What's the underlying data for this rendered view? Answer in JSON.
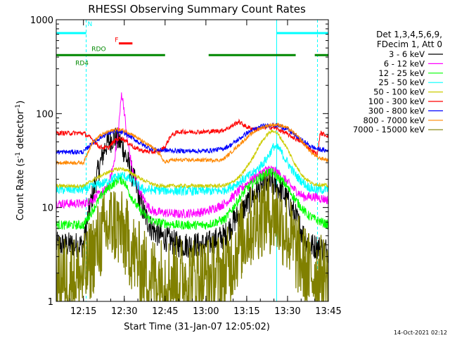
{
  "chart_data": {
    "type": "line",
    "title": "RHESSI Observing Summary Count Rates",
    "xlabel": "Start Time (31-Jan-07 12:05:02)",
    "ylabel_parts": [
      "Count Rate (s",
      "-1",
      " detector",
      "-1",
      ")"
    ],
    "x_axis": {
      "unit": "minutes after 12:05:02",
      "range": [
        0,
        100
      ],
      "tick_labels": [
        "12:15",
        "12:30",
        "12:45",
        "13:00",
        "13:15",
        "13:30",
        "13:45"
      ],
      "tick_values": [
        10,
        25,
        40,
        55,
        70,
        85,
        100
      ]
    },
    "y_axis": {
      "scale": "log",
      "range": [
        1,
        1000
      ],
      "tick_labels": [
        "1",
        "10",
        "100",
        "1000"
      ],
      "tick_values": [
        1,
        10,
        100,
        1000
      ]
    },
    "legend": {
      "placement": "right",
      "header": [
        "Det 1,3,4,5,6,9,",
        "FDecim 1, Att 0"
      ]
    },
    "series": [
      {
        "name": "3 - 6 keV",
        "color": "#000000",
        "noise": 0.14,
        "points": [
          [
            0,
            4.0
          ],
          [
            10,
            4.0
          ],
          [
            12,
            9
          ],
          [
            15,
            22
          ],
          [
            18,
            45
          ],
          [
            21,
            56
          ],
          [
            24,
            48
          ],
          [
            26,
            32
          ],
          [
            29,
            18
          ],
          [
            32,
            9
          ],
          [
            35,
            6
          ],
          [
            38,
            5
          ],
          [
            45,
            4.0
          ],
          [
            55,
            4.0
          ],
          [
            62,
            5
          ],
          [
            65,
            7
          ],
          [
            68,
            9
          ],
          [
            72,
            13
          ],
          [
            75,
            16
          ],
          [
            79,
            18
          ],
          [
            82,
            16
          ],
          [
            85,
            12
          ],
          [
            88,
            8
          ],
          [
            91,
            5
          ],
          [
            93,
            4.0
          ],
          [
            100,
            3.5
          ]
        ]
      },
      {
        "name": "6 - 12 keV",
        "color": "#ff00ff",
        "noise": 0.05,
        "points": [
          [
            0,
            11
          ],
          [
            10,
            11
          ],
          [
            13,
            12
          ],
          [
            16,
            14
          ],
          [
            19,
            16
          ],
          [
            21,
            28
          ],
          [
            22.5,
            55
          ],
          [
            23.5,
            110
          ],
          [
            24,
            165
          ],
          [
            24.8,
            120
          ],
          [
            26,
            55
          ],
          [
            28,
            25
          ],
          [
            31,
            14
          ],
          [
            34,
            10
          ],
          [
            36,
            9
          ],
          [
            45,
            8.5
          ],
          [
            55,
            9
          ],
          [
            62,
            11
          ],
          [
            66,
            14
          ],
          [
            70,
            18
          ],
          [
            74,
            22
          ],
          [
            78,
            26
          ],
          [
            81,
            24
          ],
          [
            84,
            20
          ],
          [
            87,
            16
          ],
          [
            91,
            13
          ],
          [
            95,
            13
          ],
          [
            100,
            12
          ]
        ]
      },
      {
        "name": "12 - 25 keV",
        "color": "#00ff00",
        "noise": 0.05,
        "points": [
          [
            0,
            6.5
          ],
          [
            10,
            6.5
          ],
          [
            14,
            10
          ],
          [
            17,
            14
          ],
          [
            20,
            17
          ],
          [
            23,
            20
          ],
          [
            25,
            19
          ],
          [
            27,
            14
          ],
          [
            30,
            10
          ],
          [
            33,
            8
          ],
          [
            36,
            7
          ],
          [
            45,
            6.5
          ],
          [
            55,
            6.5
          ],
          [
            62,
            7.5
          ],
          [
            66,
            11
          ],
          [
            70,
            16
          ],
          [
            74,
            20
          ],
          [
            78,
            24
          ],
          [
            80,
            23
          ],
          [
            84,
            18
          ],
          [
            88,
            12
          ],
          [
            92,
            8.5
          ],
          [
            95,
            7.5
          ],
          [
            100,
            6.5
          ]
        ]
      },
      {
        "name": "25 - 50 keV",
        "color": "#00ffff",
        "noise": 0.05,
        "points": [
          [
            0,
            15.5
          ],
          [
            10,
            15.5
          ],
          [
            14,
            17
          ],
          [
            18,
            18.5
          ],
          [
            21,
            20.5
          ],
          [
            24,
            22
          ],
          [
            26,
            21
          ],
          [
            29,
            18
          ],
          [
            32,
            15.5
          ],
          [
            45,
            15
          ],
          [
            55,
            15
          ],
          [
            61,
            15
          ],
          [
            65,
            17
          ],
          [
            69,
            20
          ],
          [
            73,
            24
          ],
          [
            77,
            32
          ],
          [
            80,
            45
          ],
          [
            82,
            42
          ],
          [
            85,
            30
          ],
          [
            88,
            22
          ],
          [
            92,
            17
          ],
          [
            95,
            15.5
          ],
          [
            100,
            15.5
          ]
        ]
      },
      {
        "name": "50 - 100 keV",
        "color": "#cccc00",
        "noise": 0.02,
        "points": [
          [
            0,
            17
          ],
          [
            10,
            17
          ],
          [
            14,
            20
          ],
          [
            18,
            23
          ],
          [
            21,
            25
          ],
          [
            24,
            26
          ],
          [
            27,
            24
          ],
          [
            30,
            21
          ],
          [
            33,
            19
          ],
          [
            35,
            18
          ],
          [
            37,
            17
          ],
          [
            45,
            17
          ],
          [
            55,
            17
          ],
          [
            61,
            17
          ],
          [
            64,
            18
          ],
          [
            68,
            22
          ],
          [
            72,
            33
          ],
          [
            75,
            48
          ],
          [
            78,
            62
          ],
          [
            80,
            66
          ],
          [
            82,
            58
          ],
          [
            85,
            42
          ],
          [
            88,
            28
          ],
          [
            91,
            21
          ],
          [
            94,
            18
          ],
          [
            100,
            17
          ]
        ]
      },
      {
        "name": "100 - 300 keV",
        "color": "#ff0000",
        "noise": 0.025,
        "points": [
          [
            0,
            62
          ],
          [
            10,
            62
          ],
          [
            13,
            54
          ],
          [
            16,
            44
          ],
          [
            19,
            43
          ],
          [
            22,
            53
          ],
          [
            24,
            55
          ],
          [
            26,
            50
          ],
          [
            29,
            43
          ],
          [
            32,
            40
          ],
          [
            35,
            39
          ],
          [
            38,
            40
          ],
          [
            40,
            44
          ],
          [
            42,
            58
          ],
          [
            45,
            64
          ],
          [
            55,
            64
          ],
          [
            61,
            66
          ],
          [
            64,
            72
          ],
          [
            67,
            82
          ],
          [
            70,
            72
          ],
          [
            73,
            68
          ],
          [
            75,
            70
          ],
          [
            78,
            72
          ],
          [
            80,
            71
          ],
          [
            83,
            65
          ],
          [
            86,
            58
          ],
          [
            89,
            52
          ],
          [
            91,
            48
          ],
          [
            94,
            40
          ],
          [
            96,
            37
          ],
          [
            97,
            62
          ],
          [
            100,
            58
          ]
        ]
      },
      {
        "name": "300 - 800 keV",
        "color": "#0000ff",
        "noise": 0.025,
        "points": [
          [
            0,
            39
          ],
          [
            10,
            39
          ],
          [
            13,
            48
          ],
          [
            16,
            55
          ],
          [
            19,
            62
          ],
          [
            22,
            65
          ],
          [
            25,
            62
          ],
          [
            28,
            55
          ],
          [
            31,
            48
          ],
          [
            34,
            43
          ],
          [
            37,
            41
          ],
          [
            45,
            40
          ],
          [
            55,
            40
          ],
          [
            61,
            42
          ],
          [
            64,
            46
          ],
          [
            67,
            53
          ],
          [
            70,
            62
          ],
          [
            73,
            68
          ],
          [
            76,
            74
          ],
          [
            79,
            76
          ],
          [
            82,
            74
          ],
          [
            85,
            68
          ],
          [
            88,
            58
          ],
          [
            91,
            50
          ],
          [
            94,
            44
          ],
          [
            96,
            42
          ],
          [
            100,
            40
          ]
        ]
      },
      {
        "name": "800 - 7000 keV",
        "color": "#ff8800",
        "noise": 0.02,
        "points": [
          [
            0,
            30
          ],
          [
            10,
            30
          ],
          [
            13,
            48
          ],
          [
            16,
            58
          ],
          [
            19,
            64
          ],
          [
            22,
            68
          ],
          [
            25,
            66
          ],
          [
            28,
            60
          ],
          [
            31,
            52
          ],
          [
            34,
            46
          ],
          [
            37,
            40
          ],
          [
            40,
            30
          ],
          [
            42,
            32
          ],
          [
            45,
            32
          ],
          [
            55,
            32
          ],
          [
            61,
            32
          ],
          [
            64,
            38
          ],
          [
            67,
            46
          ],
          [
            70,
            55
          ],
          [
            73,
            65
          ],
          [
            76,
            72
          ],
          [
            79,
            76
          ],
          [
            82,
            76
          ],
          [
            85,
            70
          ],
          [
            88,
            60
          ],
          [
            91,
            48
          ],
          [
            94,
            38
          ],
          [
            96,
            34
          ],
          [
            100,
            32
          ]
        ]
      },
      {
        "name": "7000 - 15000 keV",
        "color": "#808000",
        "noise": 0.18,
        "points": [
          [
            0,
            1.8
          ],
          [
            10,
            1.8
          ],
          [
            13,
            3
          ],
          [
            16,
            4.5
          ],
          [
            19,
            6
          ],
          [
            21,
            7
          ],
          [
            23,
            6
          ],
          [
            26,
            4.5
          ],
          [
            29,
            3
          ],
          [
            32,
            2.2
          ],
          [
            35,
            1.8
          ],
          [
            45,
            1.8
          ],
          [
            55,
            1.8
          ],
          [
            62,
            2
          ],
          [
            65,
            3
          ],
          [
            68,
            4.5
          ],
          [
            71,
            6
          ],
          [
            75,
            8
          ],
          [
            78,
            9
          ],
          [
            81,
            8
          ],
          [
            84,
            6
          ],
          [
            87,
            4
          ],
          [
            90,
            2.7
          ],
          [
            93,
            2
          ],
          [
            100,
            1.8
          ]
        ]
      }
    ],
    "overlays": [
      {
        "name": "N",
        "color": "#00ffff",
        "segments": [
          [
            0,
            11
          ],
          [
            81,
            100
          ]
        ],
        "value": 720
      },
      {
        "name": "F",
        "color": "#ff0000",
        "segments": [
          [
            23,
            28
          ]
        ],
        "value": 560
      },
      {
        "name": "RDO",
        "color": "#008800",
        "segments": [
          [
            0,
            40
          ],
          [
            56,
            88
          ],
          [
            95,
            100
          ]
        ],
        "value": 420
      }
    ],
    "overlay_labels": [
      {
        "text": "N",
        "color": "#00ffff",
        "x": 11.5,
        "value": 900
      },
      {
        "text": "F",
        "color": "#ff0000",
        "x": 21.5,
        "value": 610
      },
      {
        "text": "RDO",
        "color": "#008800",
        "x": 13,
        "value": 490
      },
      {
        "text": "RD4",
        "color": "#008800",
        "x": 7,
        "value": 345
      }
    ],
    "vertical_markers": {
      "solid": [
        81
      ],
      "dashed": [
        11,
        96
      ]
    },
    "timestamp": "14-Oct-2021 02:12"
  }
}
